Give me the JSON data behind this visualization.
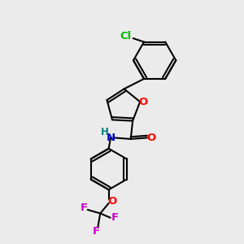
{
  "background_color": "#ebebeb",
  "bond_color": "#000000",
  "bond_width": 1.5,
  "atom_colors": {
    "O": "#ff0000",
    "N": "#0000cd",
    "Cl": "#00bb00",
    "F": "#cc00cc",
    "H": "#008080",
    "C": "#000000"
  },
  "font_size": 9.5,
  "fig_width": 3.0,
  "fig_height": 3.0,
  "dpi": 100
}
